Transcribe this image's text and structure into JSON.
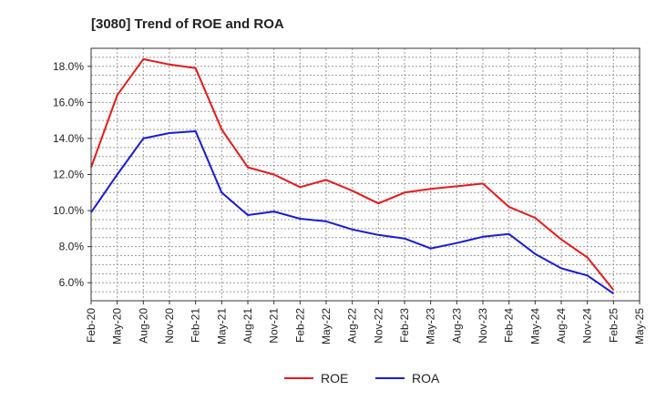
{
  "chart_data": {
    "type": "line",
    "title": "[3080]  Trend of ROE and ROA",
    "xlabel": "",
    "ylabel": "",
    "ylim": [
      5.0,
      19.0
    ],
    "yticks": [
      6.0,
      8.0,
      10.0,
      12.0,
      14.0,
      16.0,
      18.0
    ],
    "ytick_labels": [
      "6.0%",
      "8.0%",
      "10.0%",
      "12.0%",
      "14.0%",
      "16.0%",
      "18.0%"
    ],
    "x": [
      "Feb-20",
      "May-20",
      "Aug-20",
      "Nov-20",
      "Feb-21",
      "May-21",
      "Aug-21",
      "Nov-21",
      "Feb-22",
      "May-22",
      "Aug-22",
      "Nov-22",
      "Feb-23",
      "May-23",
      "Aug-23",
      "Nov-23",
      "Feb-24",
      "May-24",
      "Aug-24",
      "Nov-24",
      "Feb-25",
      "May-25"
    ],
    "grid": true,
    "legend_position": "bottom-center",
    "series": [
      {
        "name": "ROE",
        "color": "#e8191a",
        "values": [
          12.4,
          16.4,
          18.4,
          18.1,
          17.9,
          14.5,
          12.4,
          12.0,
          11.3,
          11.7,
          11.1,
          10.4,
          11.0,
          11.2,
          11.35,
          11.5,
          10.2,
          9.6,
          8.4,
          7.4,
          5.6,
          null
        ]
      },
      {
        "name": "ROA",
        "color": "#1a1adb",
        "values": [
          9.9,
          12.0,
          14.0,
          14.3,
          14.4,
          11.0,
          9.75,
          9.95,
          9.55,
          9.4,
          8.95,
          8.65,
          8.45,
          7.9,
          8.2,
          8.55,
          8.7,
          7.6,
          6.8,
          6.4,
          5.4,
          null
        ]
      }
    ]
  }
}
